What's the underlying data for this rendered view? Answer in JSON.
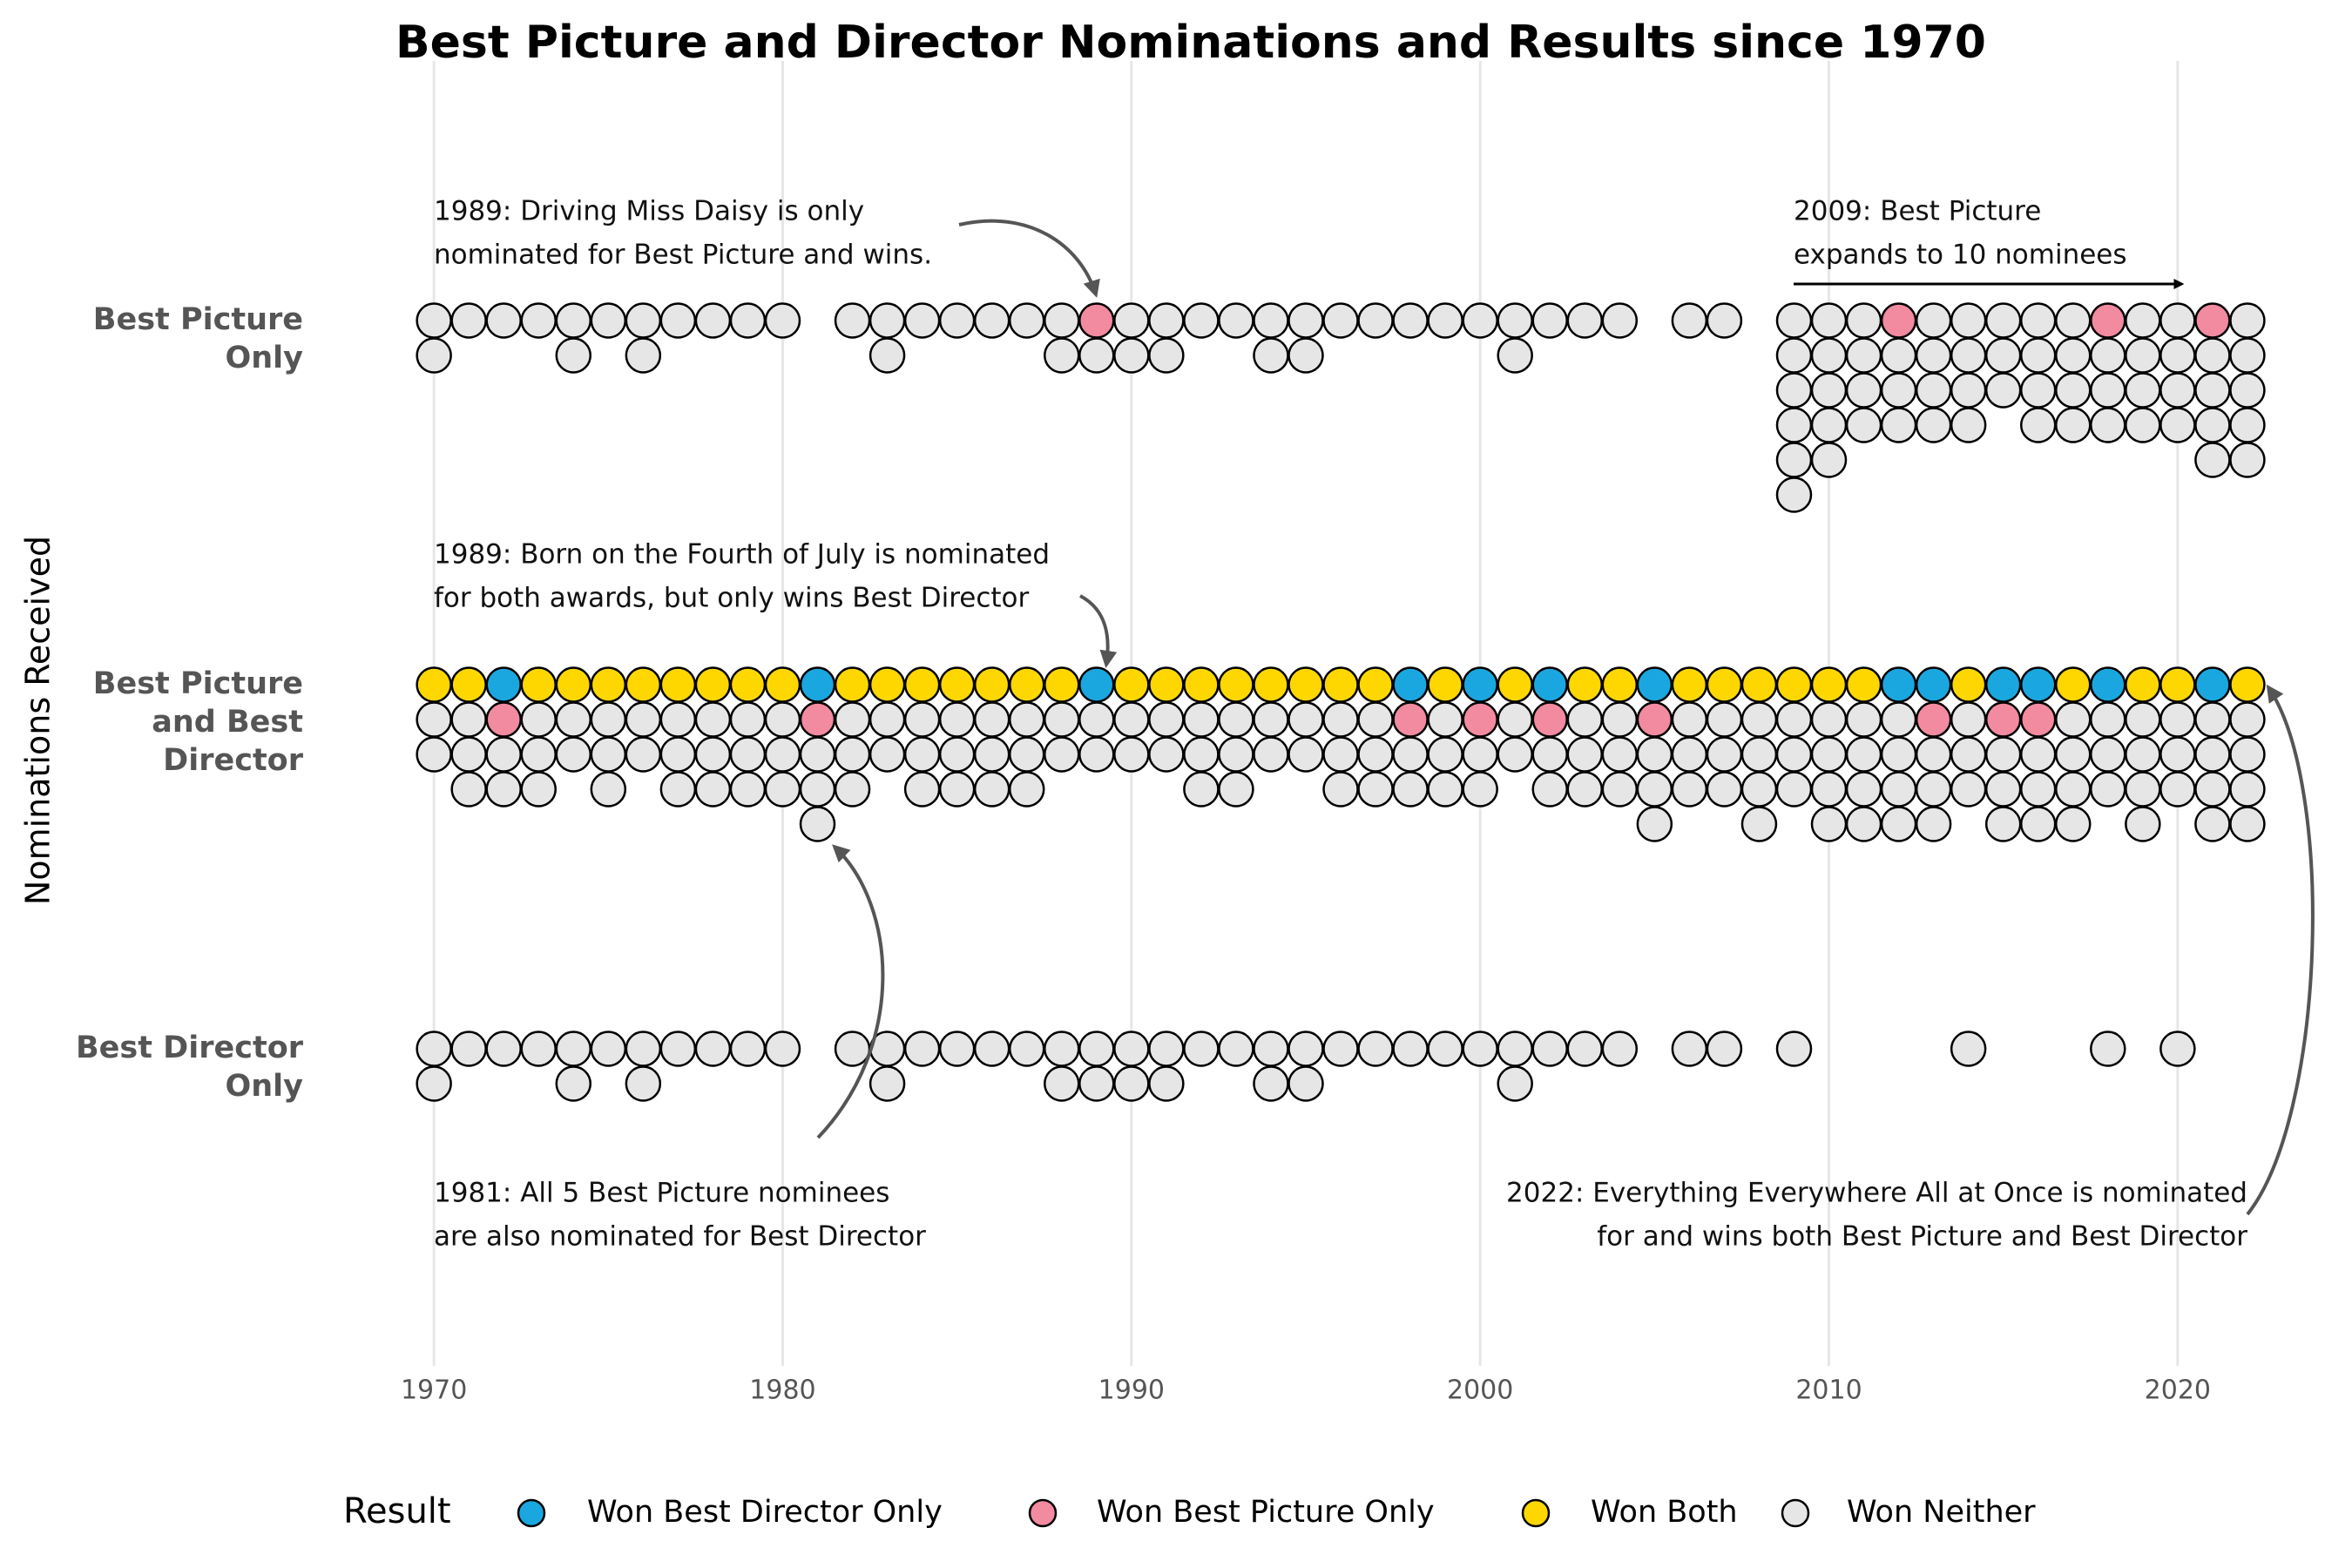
{
  "chart_data": {
    "type": "dot-stack",
    "title": "Best Picture and Director Nominations and Results since 1970",
    "y_label": "Nominations Received",
    "legend_title": "Result",
    "x": [
      1970,
      1971,
      1972,
      1973,
      1974,
      1975,
      1976,
      1977,
      1978,
      1979,
      1980,
      1981,
      1982,
      1983,
      1984,
      1985,
      1986,
      1987,
      1988,
      1989,
      1990,
      1991,
      1992,
      1993,
      1994,
      1995,
      1996,
      1997,
      1998,
      1999,
      2000,
      2001,
      2002,
      2003,
      2004,
      2005,
      2006,
      2007,
      2008,
      2009,
      2010,
      2011,
      2012,
      2013,
      2014,
      2015,
      2016,
      2017,
      2018,
      2019,
      2020,
      2021,
      2022
    ],
    "xlim": [
      1966,
      2024
    ],
    "xticks": [
      1970,
      1980,
      1990,
      2000,
      2010,
      2020
    ],
    "grid": true,
    "series": [
      {
        "name": "Won Both",
        "color": "#ffd700"
      },
      {
        "name": "Won Best Director Only",
        "color": "#1aa7e0"
      },
      {
        "name": "Won Best Picture Only",
        "color": "#f28aa0"
      },
      {
        "name": "Won Neither",
        "color": "#e6e6e6"
      }
    ],
    "legend_order": [
      1,
      2,
      0,
      3
    ],
    "groups": [
      {
        "label": [
          "Best Picture",
          "Only"
        ],
        "counts": [
          [
            0,
            0,
            0,
            0,
            0,
            0,
            0,
            0,
            0,
            0,
            0,
            0,
            0,
            0,
            0,
            0,
            0,
            0,
            0,
            0,
            0,
            0,
            0,
            0,
            0,
            0,
            0,
            0,
            0,
            0,
            0,
            0,
            0,
            0,
            0,
            0,
            0,
            0,
            0,
            0,
            0,
            0,
            0,
            0,
            0,
            0,
            0,
            0,
            0,
            0,
            0,
            0,
            0
          ],
          [
            0,
            0,
            0,
            0,
            0,
            0,
            0,
            0,
            0,
            0,
            0,
            0,
            0,
            0,
            0,
            0,
            0,
            0,
            0,
            0,
            0,
            0,
            0,
            0,
            0,
            0,
            0,
            0,
            0,
            0,
            0,
            0,
            0,
            0,
            0,
            0,
            0,
            0,
            0,
            0,
            0,
            0,
            0,
            0,
            0,
            0,
            0,
            0,
            0,
            0,
            0,
            0,
            0
          ],
          [
            0,
            0,
            0,
            0,
            0,
            0,
            0,
            0,
            0,
            0,
            0,
            0,
            0,
            0,
            0,
            0,
            0,
            0,
            0,
            1,
            0,
            0,
            0,
            0,
            0,
            0,
            0,
            0,
            0,
            0,
            0,
            0,
            0,
            0,
            0,
            0,
            0,
            0,
            0,
            0,
            0,
            0,
            1,
            0,
            0,
            0,
            0,
            0,
            1,
            0,
            0,
            1,
            0
          ],
          [
            2,
            1,
            1,
            1,
            2,
            1,
            2,
            1,
            1,
            1,
            1,
            0,
            1,
            2,
            1,
            1,
            1,
            1,
            2,
            1,
            2,
            2,
            1,
            1,
            2,
            2,
            1,
            1,
            1,
            1,
            1,
            2,
            1,
            1,
            1,
            0,
            1,
            1,
            0,
            6,
            5,
            4,
            3,
            4,
            4,
            3,
            4,
            4,
            3,
            4,
            4,
            4,
            5
          ]
        ]
      },
      {
        "label": [
          "Best Picture",
          "and Best",
          "Director"
        ],
        "counts": [
          [
            1,
            1,
            0,
            1,
            1,
            1,
            1,
            1,
            1,
            1,
            1,
            0,
            1,
            1,
            1,
            1,
            1,
            1,
            1,
            0,
            1,
            1,
            1,
            1,
            1,
            1,
            1,
            1,
            0,
            1,
            0,
            1,
            0,
            1,
            1,
            0,
            1,
            1,
            1,
            1,
            1,
            1,
            0,
            0,
            1,
            0,
            0,
            1,
            0,
            1,
            1,
            0,
            1
          ],
          [
            0,
            0,
            1,
            0,
            0,
            0,
            0,
            0,
            0,
            0,
            0,
            1,
            0,
            0,
            0,
            0,
            0,
            0,
            0,
            1,
            0,
            0,
            0,
            0,
            0,
            0,
            0,
            0,
            1,
            0,
            1,
            0,
            1,
            0,
            0,
            1,
            0,
            0,
            0,
            0,
            0,
            0,
            1,
            1,
            0,
            1,
            1,
            0,
            1,
            0,
            0,
            1,
            0
          ],
          [
            0,
            0,
            1,
            0,
            0,
            0,
            0,
            0,
            0,
            0,
            0,
            1,
            0,
            0,
            0,
            0,
            0,
            0,
            0,
            0,
            0,
            0,
            0,
            0,
            0,
            0,
            0,
            0,
            1,
            0,
            1,
            0,
            1,
            0,
            0,
            1,
            0,
            0,
            0,
            0,
            0,
            0,
            0,
            1,
            0,
            1,
            1,
            0,
            0,
            0,
            0,
            0,
            0
          ],
          [
            2,
            3,
            2,
            3,
            2,
            3,
            2,
            3,
            3,
            3,
            3,
            3,
            3,
            2,
            3,
            3,
            3,
            3,
            2,
            2,
            2,
            2,
            3,
            3,
            2,
            2,
            3,
            3,
            2,
            3,
            2,
            2,
            2,
            3,
            3,
            3,
            3,
            3,
            4,
            3,
            4,
            4,
            4,
            3,
            3,
            3,
            3,
            4,
            3,
            4,
            3,
            4,
            4
          ]
        ]
      },
      {
        "label": [
          "Best Director",
          "Only"
        ],
        "counts": [
          [
            0,
            0,
            0,
            0,
            0,
            0,
            0,
            0,
            0,
            0,
            0,
            0,
            0,
            0,
            0,
            0,
            0,
            0,
            0,
            0,
            0,
            0,
            0,
            0,
            0,
            0,
            0,
            0,
            0,
            0,
            0,
            0,
            0,
            0,
            0,
            0,
            0,
            0,
            0,
            0,
            0,
            0,
            0,
            0,
            0,
            0,
            0,
            0,
            0,
            0,
            0,
            0,
            0
          ],
          [
            0,
            0,
            0,
            0,
            0,
            0,
            0,
            0,
            0,
            0,
            0,
            0,
            0,
            0,
            0,
            0,
            0,
            0,
            0,
            0,
            0,
            0,
            0,
            0,
            0,
            0,
            0,
            0,
            0,
            0,
            0,
            0,
            0,
            0,
            0,
            0,
            0,
            0,
            0,
            0,
            0,
            0,
            0,
            0,
            0,
            0,
            0,
            0,
            0,
            0,
            0,
            0,
            0
          ],
          [
            0,
            0,
            0,
            0,
            0,
            0,
            0,
            0,
            0,
            0,
            0,
            0,
            0,
            0,
            0,
            0,
            0,
            0,
            0,
            0,
            0,
            0,
            0,
            0,
            0,
            0,
            0,
            0,
            0,
            0,
            0,
            0,
            0,
            0,
            0,
            0,
            0,
            0,
            0,
            0,
            0,
            0,
            0,
            0,
            0,
            0,
            0,
            0,
            0,
            0,
            0,
            0,
            0
          ],
          [
            2,
            1,
            1,
            1,
            2,
            1,
            2,
            1,
            1,
            1,
            1,
            0,
            1,
            2,
            1,
            1,
            1,
            1,
            2,
            2,
            2,
            2,
            1,
            1,
            2,
            2,
            1,
            1,
            1,
            1,
            1,
            2,
            1,
            1,
            1,
            0,
            1,
            1,
            0,
            1,
            0,
            0,
            0,
            0,
            1,
            0,
            0,
            0,
            1,
            0,
            1,
            0,
            0
          ]
        ]
      }
    ],
    "annotations": [
      {
        "lines": [
          "1989: Driving Miss Daisy is only",
          "nominated for Best Picture and wins."
        ]
      },
      {
        "lines": [
          "2009: Best Picture",
          "expands to 10 nominees"
        ]
      },
      {
        "lines": [
          "1989: Born on the Fourth of July is nominated",
          "for both awards, but only wins Best Director"
        ]
      },
      {
        "lines": [
          "1981: All 5 Best Picture nominees",
          "are also nominated for Best Director"
        ]
      },
      {
        "lines": [
          "2022: Everything Everywhere All at Once is nominated",
          "for and wins both Best Picture and Best Director"
        ]
      }
    ]
  }
}
